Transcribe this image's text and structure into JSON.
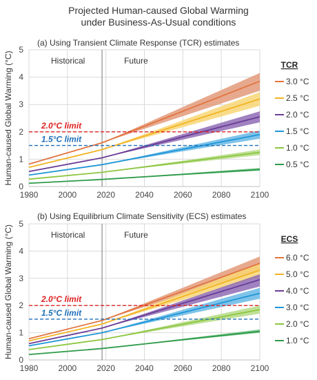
{
  "figure": {
    "title_line1": "Projected Human-caused Global Warming",
    "title_line2": "under Business-As-Usual conditions"
  },
  "chart_data": [
    {
      "type": "area",
      "title": "(a) Using Transient Climate Response (TCR) estimates",
      "ylabel": "Human-caused Global Warming (°C)",
      "xlabel": "",
      "xlim": [
        1980,
        2100
      ],
      "ylim": [
        0,
        5
      ],
      "xticks": [
        "1980",
        "2000",
        "2020",
        "2040",
        "2060",
        "2080",
        "2100"
      ],
      "yticks": [
        "0",
        "1",
        "2",
        "3",
        "4",
        "5"
      ],
      "grid": true,
      "legend_title": "TCR",
      "legend_position": "right",
      "divider_year": 2018,
      "region_labels": {
        "historical": "Historical",
        "future": "Future"
      },
      "limits": [
        {
          "label": "2.0°C limit",
          "value": 2.0,
          "color": "#e02020"
        },
        {
          "label": "1.5°C limit",
          "value": 1.5,
          "color": "#1f6fb8"
        }
      ],
      "series": [
        {
          "name": "3.0 °C",
          "color": "#e2743f",
          "band": "#e39a7a",
          "x": [
            1980,
            2018,
            2100
          ],
          "y": [
            0.82,
            1.6,
            3.85
          ],
          "y_low": [
            0.82,
            1.6,
            3.5
          ],
          "y_high": [
            0.82,
            1.6,
            4.15
          ]
        },
        {
          "name": "2.5 °C",
          "color": "#f2b321",
          "band": "#f8d675",
          "x": [
            1980,
            2018,
            2100
          ],
          "y": [
            0.7,
            1.35,
            3.2
          ],
          "y_low": [
            0.7,
            1.35,
            2.95
          ],
          "y_high": [
            0.7,
            1.35,
            3.45
          ]
        },
        {
          "name": "2.0 °C",
          "color": "#6a3c96",
          "band": "#8f6cb5",
          "x": [
            1980,
            2018,
            2100
          ],
          "y": [
            0.55,
            1.05,
            2.55
          ],
          "y_low": [
            0.55,
            1.05,
            2.35
          ],
          "y_high": [
            0.55,
            1.05,
            2.75
          ]
        },
        {
          "name": "1.5 °C",
          "color": "#1e96d6",
          "band": "#68b9e6",
          "x": [
            1980,
            2018,
            2100
          ],
          "y": [
            0.42,
            0.8,
            1.9
          ],
          "y_low": [
            0.42,
            0.8,
            1.75
          ],
          "y_high": [
            0.42,
            0.8,
            2.05
          ]
        },
        {
          "name": "1.0 °C",
          "color": "#8cc63f",
          "band": "#b5db86",
          "x": [
            1980,
            2018,
            2100
          ],
          "y": [
            0.27,
            0.52,
            1.25
          ],
          "y_low": [
            0.27,
            0.52,
            1.15
          ],
          "y_high": [
            0.27,
            0.52,
            1.35
          ]
        },
        {
          "name": "0.5 °C",
          "color": "#2e9a4a",
          "band": "#6abf7f",
          "x": [
            1980,
            2018,
            2100
          ],
          "y": [
            0.12,
            0.26,
            0.62
          ],
          "y_low": [
            0.12,
            0.26,
            0.58
          ],
          "y_high": [
            0.12,
            0.26,
            0.68
          ]
        }
      ]
    },
    {
      "type": "area",
      "title": "(b) Using Equilibrium Climate Sensitivity (ECS) estimates",
      "ylabel": "Human-caused Global Warming (°C)",
      "xlabel": "",
      "xlim": [
        1980,
        2100
      ],
      "ylim": [
        0,
        5
      ],
      "xticks": [
        "1980",
        "2000",
        "2020",
        "2040",
        "2060",
        "2080",
        "2100"
      ],
      "yticks": [
        "0",
        "1",
        "2",
        "3",
        "4",
        "5"
      ],
      "grid": true,
      "legend_title": "ECS",
      "legend_position": "right",
      "divider_year": 2018,
      "region_labels": {
        "historical": "Historical",
        "future": "Future"
      },
      "limits": [
        {
          "label": "2.0°C limit",
          "value": 2.0,
          "color": "#e02020"
        },
        {
          "label": "1.5°C limit",
          "value": 1.5,
          "color": "#1f6fb8"
        }
      ],
      "series": [
        {
          "name": "6.0 °C",
          "color": "#e2743f",
          "band": "#e39a7a",
          "x": [
            1980,
            2018,
            2100
          ],
          "y": [
            0.78,
            1.45,
            3.55
          ],
          "y_low": [
            0.78,
            1.45,
            3.3
          ],
          "y_high": [
            0.78,
            1.45,
            3.8
          ]
        },
        {
          "name": "5.0 °C",
          "color": "#f2b321",
          "band": "#f8d675",
          "x": [
            1980,
            2018,
            2100
          ],
          "y": [
            0.7,
            1.32,
            3.3
          ],
          "y_low": [
            0.7,
            1.32,
            3.05
          ],
          "y_high": [
            0.7,
            1.32,
            3.55
          ]
        },
        {
          "name": "4.0 °C",
          "color": "#6a3c96",
          "band": "#8f6cb5",
          "x": [
            1980,
            2018,
            2100
          ],
          "y": [
            0.6,
            1.17,
            2.95
          ],
          "y_low": [
            0.6,
            1.17,
            2.7
          ],
          "y_high": [
            0.6,
            1.17,
            3.15
          ]
        },
        {
          "name": "3.0 °C",
          "color": "#1e96d6",
          "band": "#68b9e6",
          "x": [
            1980,
            2018,
            2100
          ],
          "y": [
            0.52,
            1.0,
            2.45
          ],
          "y_low": [
            0.52,
            1.0,
            2.25
          ],
          "y_high": [
            0.52,
            1.0,
            2.65
          ]
        },
        {
          "name": "2.0 °C",
          "color": "#8cc63f",
          "band": "#b5db86",
          "x": [
            1980,
            2018,
            2100
          ],
          "y": [
            0.38,
            0.75,
            1.85
          ],
          "y_low": [
            0.38,
            0.75,
            1.7
          ],
          "y_high": [
            0.38,
            0.75,
            2.0
          ]
        },
        {
          "name": "1.0 °C",
          "color": "#2e9a4a",
          "band": "#6abf7f",
          "x": [
            1980,
            2018,
            2100
          ],
          "y": [
            0.2,
            0.42,
            1.05
          ],
          "y_low": [
            0.2,
            0.42,
            1.0
          ],
          "y_high": [
            0.2,
            0.42,
            1.12
          ]
        }
      ]
    }
  ]
}
